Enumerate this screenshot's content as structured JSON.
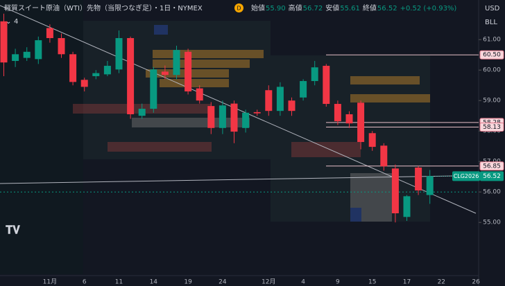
{
  "chart_data": {
    "type": "candlestick",
    "title": "軽質スイート原油（WTI）先物（当限つなぎ足）・1日・NYMEX",
    "badge": "D",
    "indicator_count": "4",
    "ohlc_header": [
      {
        "name": "始値",
        "label": "55.90"
      },
      {
        "name": "高値",
        "label": "56.72"
      },
      {
        "name": "安値",
        "label": "55.61"
      },
      {
        "name": "終値",
        "label": "56.52"
      }
    ],
    "change_label": "+0.52 (+0.93%)",
    "currency": "USD",
    "unit": "BLL",
    "categories": [
      null,
      null,
      null,
      null,
      "11月",
      null,
      null,
      "6",
      null,
      null,
      "11",
      null,
      null,
      "14",
      null,
      null,
      "19",
      null,
      null,
      "24",
      null,
      null,
      null,
      "12月",
      null,
      null,
      "4",
      null,
      null,
      "9",
      null,
      null,
      "15",
      null,
      null,
      "17",
      null,
      null,
      "22",
      null,
      null,
      "26"
    ],
    "open": [
      61.6,
      60.3,
      60.4,
      60.36,
      61.38,
      61.05,
      60.52,
      59.68,
      59.8,
      59.86,
      60.02,
      61.05,
      58.5,
      58.73,
      59.95,
      59.84,
      60.6,
      59.4,
      58.82,
      58.1,
      58.9,
      58.1,
      58.62,
      59.34,
      58.66,
      59.0,
      59.1,
      59.64,
      60.14,
      58.89,
      58.55,
      58.93,
      57.93,
      57.52,
      56.77,
      55.18,
      56.8,
      55.9,
      null,
      null,
      null,
      null
    ],
    "high": [
      61.85,
      60.7,
      60.75,
      61.1,
      61.5,
      61.2,
      60.6,
      59.75,
      60.0,
      60.3,
      61.3,
      61.1,
      58.9,
      60.1,
      60.15,
      60.8,
      60.7,
      59.5,
      58.95,
      59.0,
      59.0,
      58.7,
      58.7,
      59.5,
      59.6,
      59.1,
      59.7,
      60.3,
      60.2,
      59.0,
      58.65,
      59.0,
      58.0,
      57.6,
      56.9,
      55.9,
      56.85,
      56.72,
      null,
      null,
      null,
      null
    ],
    "low": [
      59.8,
      60.1,
      60.3,
      60.2,
      60.9,
      60.4,
      59.5,
      59.3,
      59.7,
      59.8,
      59.9,
      58.4,
      58.4,
      58.6,
      59.7,
      59.7,
      59.2,
      58.9,
      57.9,
      57.9,
      57.6,
      57.95,
      58.5,
      58.5,
      58.5,
      58.5,
      59.0,
      59.5,
      58.8,
      58.2,
      58.1,
      57.4,
      57.35,
      56.7,
      55.0,
      55.05,
      55.9,
      55.61,
      null,
      null,
      null,
      null
    ],
    "close": [
      60.25,
      60.52,
      60.6,
      60.98,
      61.05,
      60.52,
      59.61,
      59.45,
      59.9,
      60.14,
      61.05,
      58.55,
      58.73,
      60.02,
      59.84,
      60.66,
      59.3,
      59.0,
      58.1,
      58.84,
      57.98,
      58.6,
      58.58,
      58.66,
      59.45,
      58.66,
      59.64,
      60.09,
      58.89,
      58.32,
      58.25,
      57.64,
      57.48,
      56.84,
      55.3,
      55.86,
      56.05,
      56.52,
      null,
      null,
      null,
      null
    ],
    "up_color": "#089981",
    "down_color": "#f23645",
    "ylim": [
      53.3,
      62.3
    ],
    "yticks": [
      {
        "value": 55,
        "label": "55.00"
      },
      {
        "value": 56,
        "label": "56.00"
      },
      {
        "value": 57,
        "label": "57.00"
      },
      {
        "value": 58,
        "label": "58.00"
      },
      {
        "value": 59,
        "label": "59.00"
      },
      {
        "value": 60,
        "label": "60.00"
      },
      {
        "value": 61,
        "label": "61.00"
      }
    ],
    "price_lines": [
      {
        "value": 60.5,
        "label": "60.50"
      },
      {
        "value": 58.28,
        "label": "58.28"
      },
      {
        "value": 58.13,
        "label": "58.13"
      },
      {
        "value": 56.85,
        "label": "56.85"
      }
    ],
    "symbol": "CLG2026",
    "last_price": {
      "value": 56.52,
      "label": "56.52"
    },
    "prev_close": 56.0
  }
}
